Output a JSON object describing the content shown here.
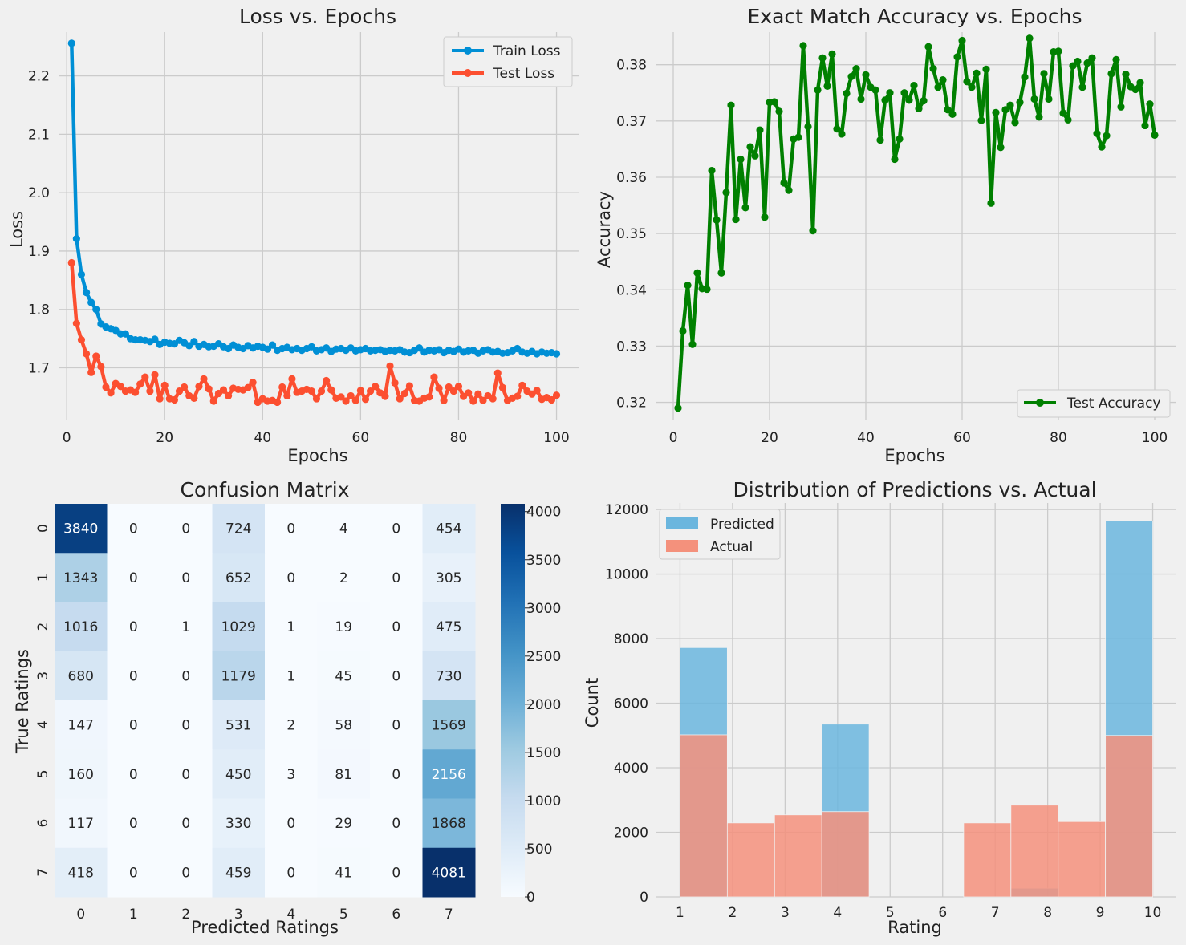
{
  "chart_data": [
    {
      "type": "line",
      "title": "Loss vs. Epochs",
      "xlabel": "Epochs",
      "ylabel": "Loss",
      "xlim": [
        -1.5,
        104.5
      ],
      "ylim": [
        1.61,
        2.275
      ],
      "xticks": [
        0,
        20,
        40,
        60,
        80,
        100
      ],
      "yticks": [
        1.7,
        1.8,
        1.9,
        2.0,
        2.1,
        2.2
      ],
      "ytick_labels": [
        "1.7",
        "1.8",
        "1.9",
        "2.0",
        "2.1",
        "2.2"
      ],
      "legend": "top-right",
      "series": [
        {
          "name": "Train Loss",
          "color": "#008fd5",
          "values": [
            2.256,
            1.921,
            1.86,
            1.829,
            1.812,
            1.8,
            1.775,
            1.77,
            1.767,
            1.764,
            1.758,
            1.758,
            1.75,
            1.748,
            1.748,
            1.747,
            1.745,
            1.749,
            1.74,
            1.744,
            1.742,
            1.741,
            1.747,
            1.743,
            1.738,
            1.745,
            1.737,
            1.74,
            1.736,
            1.737,
            1.741,
            1.736,
            1.733,
            1.739,
            1.735,
            1.733,
            1.738,
            1.734,
            1.737,
            1.735,
            1.732,
            1.739,
            1.73,
            1.733,
            1.735,
            1.731,
            1.733,
            1.73,
            1.733,
            1.736,
            1.729,
            1.731,
            1.734,
            1.728,
            1.732,
            1.733,
            1.73,
            1.734,
            1.729,
            1.731,
            1.733,
            1.729,
            1.73,
            1.731,
            1.728,
            1.73,
            1.729,
            1.731,
            1.727,
            1.726,
            1.73,
            1.734,
            1.727,
            1.73,
            1.729,
            1.731,
            1.726,
            1.73,
            1.728,
            1.732,
            1.727,
            1.729,
            1.73,
            1.725,
            1.729,
            1.731,
            1.727,
            1.728,
            1.725,
            1.726,
            1.729,
            1.733,
            1.727,
            1.725,
            1.728,
            1.724,
            1.727,
            1.725,
            1.726,
            1.724
          ]
        },
        {
          "name": "Test Loss",
          "color": "#fc4f30",
          "values": [
            1.88,
            1.776,
            1.748,
            1.724,
            1.692,
            1.72,
            1.702,
            1.667,
            1.657,
            1.673,
            1.668,
            1.66,
            1.662,
            1.658,
            1.672,
            1.684,
            1.66,
            1.688,
            1.647,
            1.67,
            1.647,
            1.645,
            1.66,
            1.667,
            1.652,
            1.648,
            1.668,
            1.681,
            1.664,
            1.643,
            1.656,
            1.662,
            1.652,
            1.665,
            1.663,
            1.662,
            1.666,
            1.675,
            1.641,
            1.647,
            1.643,
            1.644,
            1.641,
            1.667,
            1.652,
            1.681,
            1.658,
            1.66,
            1.663,
            1.66,
            1.647,
            1.66,
            1.678,
            1.662,
            1.648,
            1.65,
            1.643,
            1.652,
            1.644,
            1.661,
            1.646,
            1.66,
            1.668,
            1.657,
            1.651,
            1.703,
            1.674,
            1.647,
            1.656,
            1.669,
            1.644,
            1.643,
            1.648,
            1.65,
            1.684,
            1.665,
            1.644,
            1.667,
            1.66,
            1.668,
            1.651,
            1.657,
            1.643,
            1.655,
            1.644,
            1.652,
            1.647,
            1.691,
            1.666,
            1.644,
            1.648,
            1.651,
            1.67,
            1.66,
            1.655,
            1.661,
            1.646,
            1.649,
            1.645,
            1.653
          ]
        }
      ]
    },
    {
      "type": "line",
      "title": "Exact Match Accuracy vs. Epochs",
      "xlabel": "Epochs",
      "ylabel": "Accuracy",
      "xlim": [
        -3.5,
        104.5
      ],
      "ylim": [
        0.3168,
        0.3858
      ],
      "xticks": [
        0,
        20,
        40,
        60,
        80,
        100
      ],
      "yticks": [
        0.32,
        0.33,
        0.34,
        0.35,
        0.36,
        0.37,
        0.38
      ],
      "ytick_labels": [
        "0.32",
        "0.33",
        "0.34",
        "0.35",
        "0.36",
        "0.37",
        "0.38"
      ],
      "legend": "bottom-right",
      "series": [
        {
          "name": "Test Accuracy",
          "color": "#008000",
          "values": [
            0.319,
            0.3327,
            0.3408,
            0.3303,
            0.343,
            0.3402,
            0.3401,
            0.3612,
            0.3524,
            0.343,
            0.3573,
            0.3728,
            0.3525,
            0.3632,
            0.3546,
            0.3654,
            0.3638,
            0.3684,
            0.3529,
            0.3733,
            0.3734,
            0.3717,
            0.359,
            0.3577,
            0.3668,
            0.3671,
            0.3834,
            0.369,
            0.3505,
            0.3755,
            0.3812,
            0.3762,
            0.3819,
            0.3686,
            0.3677,
            0.3749,
            0.3779,
            0.3793,
            0.3739,
            0.3782,
            0.376,
            0.3755,
            0.3666,
            0.3737,
            0.375,
            0.3632,
            0.3668,
            0.375,
            0.3737,
            0.3763,
            0.3722,
            0.3736,
            0.3832,
            0.3793,
            0.376,
            0.3773,
            0.372,
            0.3712,
            0.3814,
            0.3843,
            0.377,
            0.376,
            0.3785,
            0.3701,
            0.3792,
            0.3554,
            0.3715,
            0.3653,
            0.372,
            0.3728,
            0.3697,
            0.3733,
            0.3778,
            0.3847,
            0.3739,
            0.3707,
            0.3784,
            0.3739,
            0.3823,
            0.3824,
            0.3714,
            0.3702,
            0.3798,
            0.3806,
            0.376,
            0.3803,
            0.3812,
            0.3678,
            0.3654,
            0.3674,
            0.3784,
            0.3809,
            0.3725,
            0.3783,
            0.3761,
            0.3756,
            0.3768,
            0.3692,
            0.373,
            0.3675
          ]
        }
      ]
    },
    {
      "type": "heatmap",
      "title": "Confusion Matrix",
      "xlabel": "Predicted Ratings",
      "ylabel": "True Ratings",
      "categories": [
        "0",
        "1",
        "2",
        "3",
        "4",
        "5",
        "6",
        "7"
      ],
      "values": [
        [
          3840,
          0,
          0,
          724,
          0,
          4,
          0,
          454
        ],
        [
          1343,
          0,
          0,
          652,
          0,
          2,
          0,
          305
        ],
        [
          1016,
          0,
          1,
          1029,
          1,
          19,
          0,
          475
        ],
        [
          680,
          0,
          0,
          1179,
          1,
          45,
          0,
          730
        ],
        [
          147,
          0,
          0,
          531,
          2,
          58,
          0,
          1569
        ],
        [
          160,
          0,
          0,
          450,
          3,
          81,
          0,
          2156
        ],
        [
          117,
          0,
          0,
          330,
          0,
          29,
          0,
          1868
        ],
        [
          418,
          0,
          0,
          459,
          0,
          41,
          0,
          4081
        ]
      ],
      "colorbar_range": [
        0,
        4081
      ],
      "colorbar_ticks": [
        0,
        500,
        1000,
        1500,
        2000,
        2500,
        3000,
        3500,
        4000
      ]
    },
    {
      "type": "bar",
      "subtype": "histogram",
      "title": "Distribution of Predictions vs. Actual",
      "xlabel": "Rating",
      "ylabel": "Count",
      "xlim": [
        0.55,
        10.45
      ],
      "ylim": [
        0,
        12200
      ],
      "xticks": [
        1,
        2,
        3,
        4,
        5,
        6,
        7,
        8,
        9,
        10
      ],
      "yticks": [
        0,
        2000,
        4000,
        6000,
        8000,
        10000,
        12000
      ],
      "legend": "top-left",
      "bin_edges": [
        1,
        1.9,
        2.8,
        3.7,
        4.6,
        5.5,
        6.4,
        7.3,
        8.2,
        9.1,
        10
      ],
      "series": [
        {
          "name": "Predicted",
          "color": "#6bb6de",
          "values": [
            7720,
            0,
            0,
            5350,
            0,
            0,
            0,
            270,
            0,
            11640
          ]
        },
        {
          "name": "Actual",
          "color": "#f4917c",
          "values": [
            5020,
            2290,
            2540,
            2640,
            0,
            0,
            2290,
            2840,
            2330,
            5000
          ]
        }
      ]
    }
  ]
}
